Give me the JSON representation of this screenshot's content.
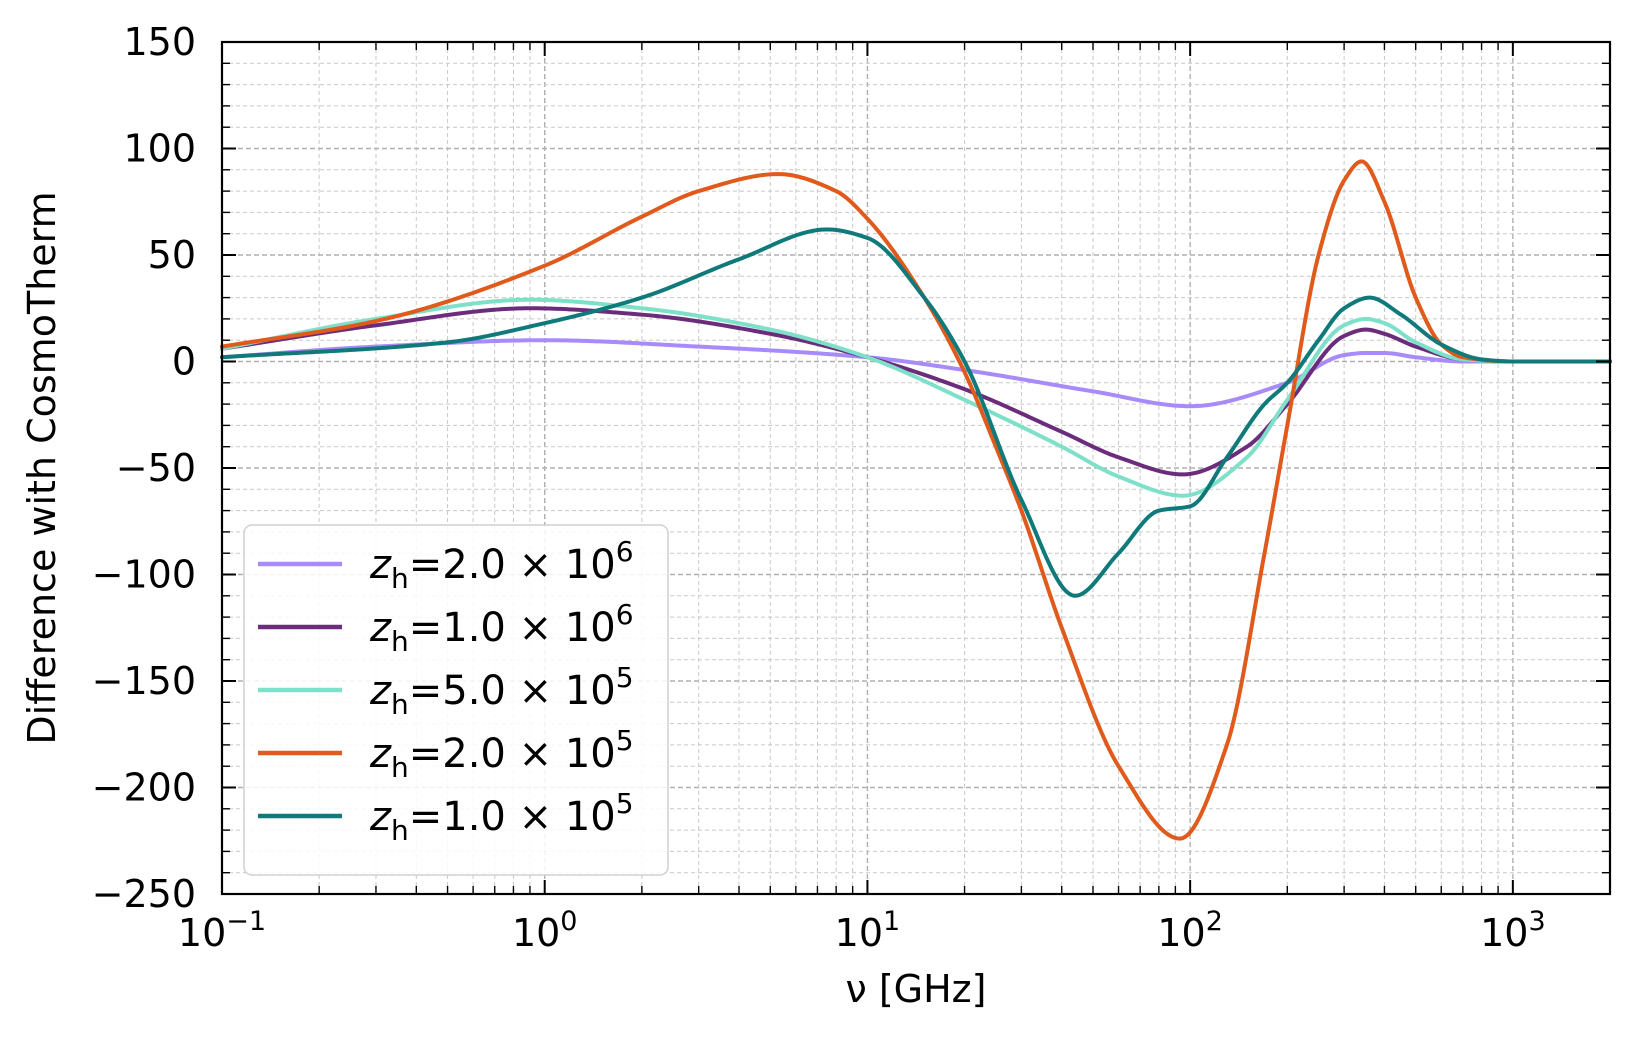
{
  "chart_data": {
    "type": "line",
    "title": "",
    "xlabel": "ν [GHz]",
    "ylabel": "Difference with CosmoTherm",
    "xscale": "log",
    "xlim": [
      0.1,
      2000
    ],
    "ylim": [
      -250,
      150
    ],
    "yticks": [
      -250,
      -200,
      -150,
      -100,
      -50,
      0,
      50,
      100,
      150
    ],
    "ytick_labels": [
      "−250",
      "−200",
      "−150",
      "−100",
      "−50",
      "0",
      "50",
      "100",
      "150"
    ],
    "xticks": [
      0.1,
      1,
      10,
      100,
      1000
    ],
    "xtick_labels": [
      {
        "base": "10",
        "exp": "−1"
      },
      {
        "base": "10",
        "exp": "0"
      },
      {
        "base": "10",
        "exp": "1"
      },
      {
        "base": "10",
        "exp": "2"
      },
      {
        "base": "10",
        "exp": "3"
      }
    ],
    "grid": true,
    "legend_position": "lower-left",
    "series": [
      {
        "name": "z_h=2.0×10^6",
        "label": {
          "var": "z",
          "sub": "h",
          "mantissa": "=2.0 × 10",
          "exp": "6"
        },
        "color": "#a78bfa",
        "x": [
          0.1,
          0.3,
          1,
          3,
          10,
          20,
          50,
          100,
          200,
          300,
          350,
          400,
          500,
          700,
          1000,
          2000
        ],
        "y": [
          2,
          7,
          10,
          7,
          2,
          -4,
          -14,
          -21,
          -10,
          3,
          4,
          4,
          2,
          0,
          0,
          0
        ]
      },
      {
        "name": "z_h=1.0×10^6",
        "label": {
          "var": "z",
          "sub": "h",
          "mantissa": "=1.0 × 10",
          "exp": "6"
        },
        "color": "#6b2d7b",
        "x": [
          0.1,
          0.3,
          0.9,
          2,
          5,
          10,
          20,
          40,
          60,
          95,
          150,
          200,
          300,
          350,
          400,
          500,
          700,
          1000,
          2000
        ],
        "y": [
          6,
          17,
          25,
          22,
          13,
          2,
          -13,
          -33,
          -45,
          -53,
          -40,
          -20,
          12,
          15,
          13,
          7,
          1,
          0,
          0
        ]
      },
      {
        "name": "z_h=5.0×10^5",
        "label": {
          "var": "z",
          "sub": "h",
          "mantissa": "=5.0 × 10",
          "exp": "5"
        },
        "color": "#7ee0c8",
        "x": [
          0.1,
          0.3,
          0.9,
          2,
          5,
          10,
          20,
          40,
          60,
          95,
          150,
          200,
          300,
          350,
          400,
          500,
          700,
          1000,
          2000
        ],
        "y": [
          6,
          20,
          29,
          25,
          15,
          2,
          -18,
          -40,
          -54,
          -63,
          -45,
          -18,
          17,
          20,
          18,
          9,
          1,
          0,
          0
        ]
      },
      {
        "name": "z_h=2.0×10^5",
        "label": {
          "var": "z",
          "sub": "h",
          "mantissa": "=2.0 × 10",
          "exp": "5"
        },
        "color": "#e05a1c",
        "x": [
          0.1,
          0.3,
          1,
          2,
          3,
          5.3,
          8,
          10,
          15,
          20,
          25,
          30,
          40,
          60,
          93,
          130,
          170,
          200,
          250,
          300,
          340,
          400,
          500,
          600,
          700,
          1000,
          2000
        ],
        "y": [
          7,
          19,
          45,
          68,
          80,
          88,
          80,
          67,
          30,
          -5,
          -40,
          -70,
          -125,
          -190,
          -224,
          -180,
          -90,
          -30,
          50,
          85,
          94,
          75,
          30,
          8,
          2,
          0,
          0
        ]
      },
      {
        "name": "z_h=1.0×10^5",
        "label": {
          "var": "z",
          "sub": "h",
          "mantissa": "=1.0 × 10",
          "exp": "5"
        },
        "color": "#107a7a",
        "x": [
          0.1,
          0.5,
          1,
          2,
          4,
          7.5,
          10,
          15,
          20,
          30,
          44,
          60,
          80,
          100,
          130,
          170,
          200,
          250,
          300,
          360,
          450,
          600,
          800,
          1000,
          2000
        ],
        "y": [
          2,
          9,
          18,
          30,
          48,
          62,
          58,
          30,
          0,
          -65,
          -110,
          -90,
          -70,
          -68,
          -45,
          -20,
          -10,
          10,
          25,
          30,
          22,
          8,
          1,
          0,
          0
        ]
      }
    ]
  }
}
